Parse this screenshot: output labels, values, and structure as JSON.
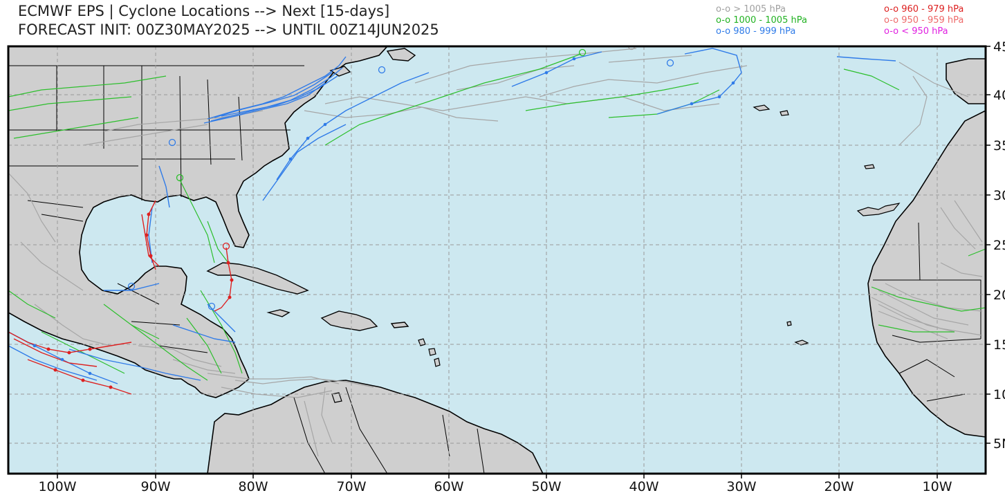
{
  "title": {
    "line1": "ECMWF EPS | Cyclone Locations --> Next [15-days]",
    "line2": "FORECAST INIT: 00Z30MAY2025 --> UNTIL 00Z14JUN2025"
  },
  "legend": [
    {
      "label": "o-o > 1005 hPa",
      "color": "#a0a0a0"
    },
    {
      "label": "o-o 1000 - 1005 hPa",
      "color": "#22b222"
    },
    {
      "label": "o-o 980 - 999 hPa",
      "color": "#2f7be8"
    },
    {
      "label": "o-o 960 - 979 hPa",
      "color": "#dd2020"
    },
    {
      "label": "o-o 950 - 959 hPa",
      "color": "#ee6a6a"
    },
    {
      "label": "o-o < 950 hPa",
      "color": "#e020e0"
    }
  ],
  "map": {
    "ocean_color": "#cde8f0",
    "land_color": "#cfcfcf",
    "lon_labels": [
      "100W",
      "90W",
      "80W",
      "70W",
      "60W",
      "50W",
      "40W",
      "30W",
      "20W",
      "10W"
    ],
    "lat_labels": [
      "45",
      "40",
      "35",
      "30",
      "25",
      "20",
      "15",
      "10",
      "5N"
    ]
  }
}
